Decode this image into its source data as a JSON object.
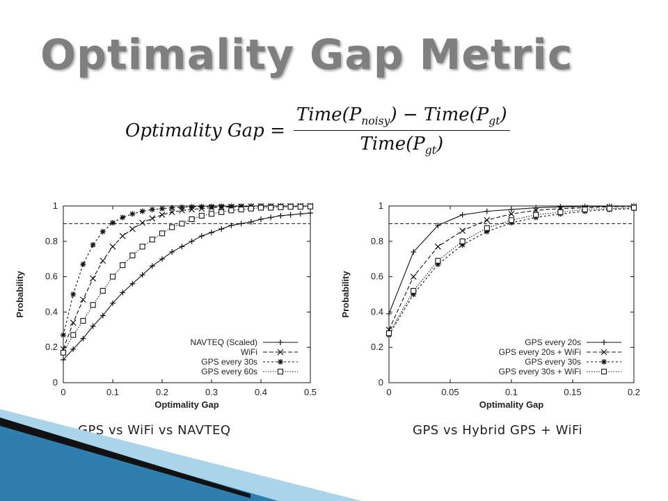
{
  "slide": {
    "title": "Optimality Gap Metric",
    "formula": {
      "lhs": "Optimality Gap =",
      "num_a": "Time(P",
      "num_a_sub": "noisy",
      "num_b": ") − Time(P",
      "num_b_sub": "gt",
      "num_c": ")",
      "den_a": "Time(P",
      "den_a_sub": "gt",
      "den_b": ")"
    }
  },
  "colors": {
    "title": "#7f7f7f",
    "deco_blue": "#2e7fb0",
    "deco_light": "#a9d4ea"
  },
  "chart_data": [
    {
      "type": "line",
      "caption": "GPS vs WiFi vs NAVTEQ",
      "xlabel": "Optimality Gap",
      "ylabel": "Probability",
      "xlim": [
        0,
        0.5
      ],
      "ylim": [
        0,
        1
      ],
      "xticks": [
        0,
        0.1,
        0.2,
        0.3,
        0.4,
        0.5
      ],
      "xtick_labels": [
        "0",
        "0.1",
        "0.2",
        "0.3",
        "0.4",
        "0.5"
      ],
      "yticks": [
        0,
        0.2,
        0.4,
        0.6,
        0.8,
        1
      ],
      "ytick_labels": [
        "0",
        "0.2",
        "0.4",
        "0.6",
        "0.8",
        "1"
      ],
      "reference_line": 0.9,
      "grid": false,
      "legend_position": "bottom-right",
      "series": [
        {
          "name": "NAVTEQ (Scaled)",
          "marker": "plus",
          "dash": "",
          "x": [
            0,
            0.02,
            0.04,
            0.06,
            0.08,
            0.1,
            0.12,
            0.14,
            0.16,
            0.18,
            0.2,
            0.22,
            0.24,
            0.26,
            0.28,
            0.3,
            0.32,
            0.34,
            0.36,
            0.38,
            0.4,
            0.42,
            0.44,
            0.46,
            0.48,
            0.5
          ],
          "y": [
            0.13,
            0.19,
            0.25,
            0.32,
            0.38,
            0.45,
            0.51,
            0.56,
            0.61,
            0.66,
            0.7,
            0.74,
            0.77,
            0.8,
            0.83,
            0.85,
            0.87,
            0.89,
            0.9,
            0.91,
            0.925,
            0.935,
            0.945,
            0.95,
            0.955,
            0.96
          ]
        },
        {
          "name": "WiFi",
          "marker": "cross",
          "dash": "6,3",
          "x": [
            0,
            0.02,
            0.04,
            0.06,
            0.08,
            0.1,
            0.12,
            0.14,
            0.16,
            0.18,
            0.2,
            0.22,
            0.24,
            0.26,
            0.28,
            0.3,
            0.32,
            0.34,
            0.36,
            0.38,
            0.4,
            0.42,
            0.44,
            0.46,
            0.48,
            0.5
          ],
          "y": [
            0.19,
            0.34,
            0.47,
            0.59,
            0.69,
            0.77,
            0.83,
            0.87,
            0.905,
            0.93,
            0.95,
            0.965,
            0.975,
            0.98,
            0.985,
            0.99,
            0.993,
            0.995,
            0.996,
            0.997,
            0.998,
            0.998,
            0.999,
            0.999,
            1,
            1
          ]
        },
        {
          "name": "GPS every 30s",
          "marker": "star",
          "dash": "3,3",
          "x": [
            0,
            0.02,
            0.04,
            0.06,
            0.08,
            0.1,
            0.12,
            0.14,
            0.16,
            0.18,
            0.2,
            0.22,
            0.24,
            0.26,
            0.28,
            0.3,
            0.32,
            0.34,
            0.36,
            0.38,
            0.4,
            0.42,
            0.44,
            0.46,
            0.48,
            0.5
          ],
          "y": [
            0.27,
            0.5,
            0.67,
            0.78,
            0.855,
            0.905,
            0.935,
            0.955,
            0.97,
            0.98,
            0.985,
            0.99,
            0.993,
            0.995,
            0.996,
            0.997,
            0.998,
            0.998,
            0.999,
            0.999,
            1,
            1,
            1,
            1,
            1,
            1
          ]
        },
        {
          "name": "GPS every 60s",
          "marker": "square",
          "dash": "1.5,2",
          "x": [
            0,
            0.02,
            0.04,
            0.06,
            0.08,
            0.1,
            0.12,
            0.14,
            0.16,
            0.18,
            0.2,
            0.22,
            0.24,
            0.26,
            0.28,
            0.3,
            0.32,
            0.34,
            0.36,
            0.38,
            0.4,
            0.42,
            0.44,
            0.46,
            0.48,
            0.5
          ],
          "y": [
            0.17,
            0.27,
            0.35,
            0.44,
            0.52,
            0.6,
            0.665,
            0.72,
            0.77,
            0.81,
            0.845,
            0.88,
            0.9,
            0.925,
            0.945,
            0.955,
            0.965,
            0.975,
            0.98,
            0.985,
            0.99,
            0.99,
            0.993,
            0.995,
            0.995,
            0.997
          ]
        }
      ]
    },
    {
      "type": "line",
      "caption": "GPS vs Hybrid GPS + WiFi",
      "xlabel": "Optimality Gap",
      "ylabel": "Probability",
      "xlim": [
        0,
        0.2
      ],
      "ylim": [
        0,
        1
      ],
      "xticks": [
        0,
        0.05,
        0.1,
        0.15,
        0.2
      ],
      "xtick_labels": [
        "0",
        "0.05",
        "0.1",
        "0.15",
        "0.2"
      ],
      "yticks": [
        0,
        0.2,
        0.4,
        0.6,
        0.8,
        1
      ],
      "ytick_labels": [
        "0",
        "0.2",
        "0.4",
        "0.6",
        "0.8",
        "1"
      ],
      "reference_line": 0.9,
      "grid": false,
      "legend_position": "bottom-right",
      "series": [
        {
          "name": "GPS every 20s",
          "marker": "plus",
          "dash": "",
          "x": [
            0,
            0.02,
            0.04,
            0.06,
            0.08,
            0.1,
            0.12,
            0.14,
            0.16,
            0.18,
            0.2
          ],
          "y": [
            0.39,
            0.74,
            0.89,
            0.95,
            0.97,
            0.98,
            0.99,
            0.995,
            0.997,
            0.998,
            1
          ]
        },
        {
          "name": "GPS every 20s + WiFi",
          "marker": "cross",
          "dash": "6,3",
          "x": [
            0,
            0.02,
            0.04,
            0.06,
            0.08,
            0.1,
            0.12,
            0.14,
            0.16,
            0.18,
            0.2
          ],
          "y": [
            0.3,
            0.6,
            0.77,
            0.86,
            0.92,
            0.955,
            0.975,
            0.985,
            0.99,
            0.995,
            0.998
          ]
        },
        {
          "name": "GPS every 30s",
          "marker": "star",
          "dash": "3,3",
          "x": [
            0,
            0.02,
            0.04,
            0.06,
            0.08,
            0.1,
            0.12,
            0.14,
            0.16,
            0.18,
            0.2
          ],
          "y": [
            0.27,
            0.5,
            0.67,
            0.78,
            0.855,
            0.905,
            0.935,
            0.955,
            0.97,
            0.98,
            0.985
          ]
        },
        {
          "name": "GPS every 30s + WiFi",
          "marker": "square",
          "dash": "1.5,2",
          "x": [
            0,
            0.02,
            0.04,
            0.06,
            0.08,
            0.1,
            0.12,
            0.14,
            0.16,
            0.18,
            0.2
          ],
          "y": [
            0.28,
            0.52,
            0.69,
            0.8,
            0.875,
            0.92,
            0.95,
            0.965,
            0.98,
            0.985,
            0.99
          ]
        }
      ]
    }
  ]
}
